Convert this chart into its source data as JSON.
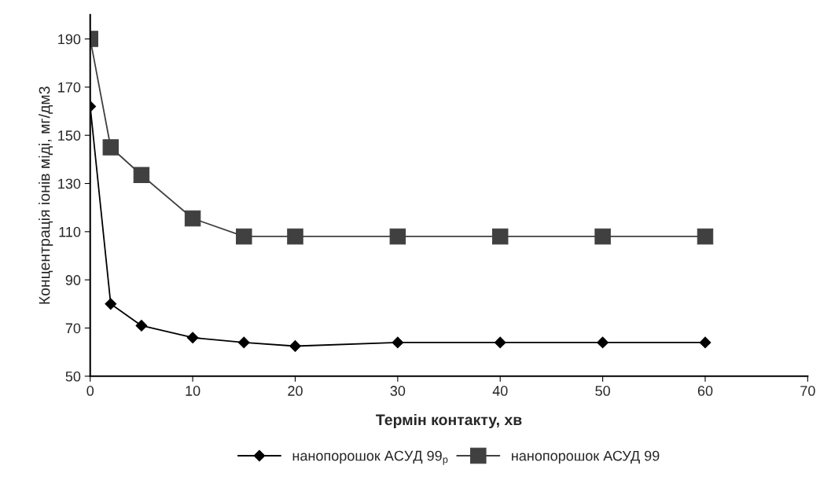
{
  "chart_data": {
    "type": "line",
    "xlabel": "Термін контакту, хв",
    "ylabel": "Концентрація іонів міді, мг/дм3",
    "x": [
      0,
      2,
      5,
      10,
      15,
      20,
      30,
      40,
      50,
      60
    ],
    "series": [
      {
        "name": "нанопорошок АСУД 99$_{р}$",
        "color": "#000000",
        "marker": "diamond",
        "values": [
          162,
          80,
          71,
          66,
          64,
          62.5,
          64,
          64,
          64,
          64
        ]
      },
      {
        "name": "нанопорошок АСУД 99",
        "color": "#404040",
        "marker": "square",
        "values": [
          190,
          145,
          133.5,
          115.5,
          108,
          108,
          108,
          108,
          108,
          108
        ]
      }
    ],
    "xlim": [
      0,
      70
    ],
    "xticks": [
      0,
      10,
      20,
      30,
      40,
      50,
      60,
      70
    ],
    "ylim": [
      50,
      200
    ],
    "yticks": [
      50,
      70,
      90,
      110,
      130,
      150,
      170,
      190
    ],
    "grid": false,
    "legend": "bottom",
    "line_style": "solid"
  }
}
